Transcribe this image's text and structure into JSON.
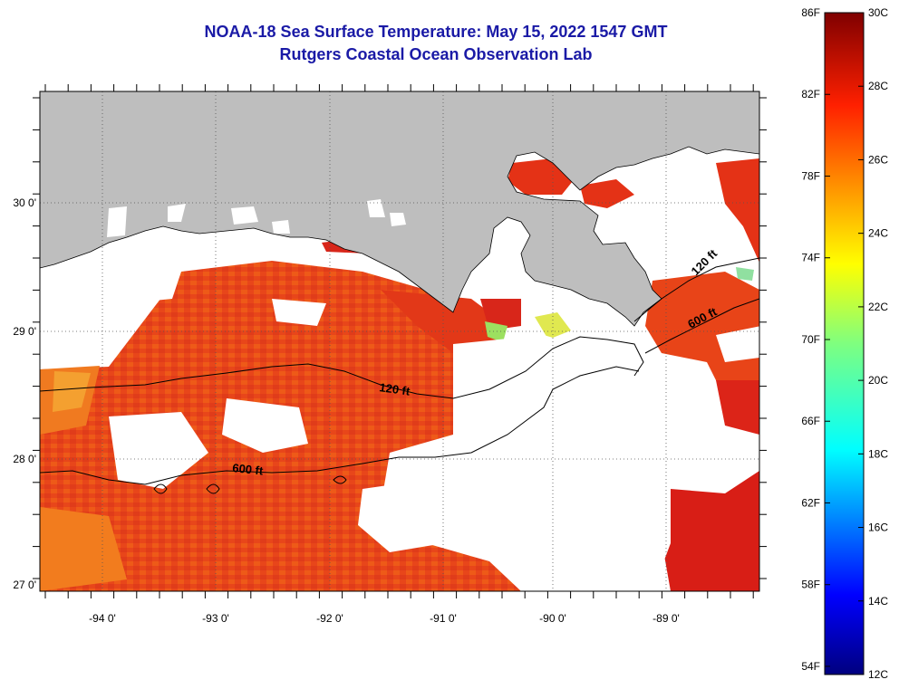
{
  "title": {
    "line1": "NOAA-18 Sea Surface Temperature:  May 15, 2022 1547 GMT",
    "line2": "Rutgers Coastal Ocean Observation Lab"
  },
  "axes": {
    "x_ticks": [
      {
        "value": -94,
        "label": "-94 0'"
      },
      {
        "value": -93,
        "label": "-93 0'"
      },
      {
        "value": -92,
        "label": "-92 0'"
      },
      {
        "value": -91,
        "label": "-91 0'"
      },
      {
        "value": -90,
        "label": "-90 0'"
      },
      {
        "value": -89,
        "label": "-89 0'"
      }
    ],
    "y_ticks": [
      {
        "value": 30,
        "label": "30 0'"
      },
      {
        "value": 29,
        "label": "29 0'"
      },
      {
        "value": 28,
        "label": "28 0'"
      },
      {
        "value": 27,
        "label": "27 0'"
      }
    ],
    "lon_range": [
      -94.5,
      -88.2
    ],
    "lat_range": [
      26.95,
      30.85
    ]
  },
  "contours": [
    {
      "name": "120-ft-isobath",
      "label": "120 ft"
    },
    {
      "name": "120-ft-isobath-east",
      "label": "120 ft"
    },
    {
      "name": "600-ft-isobath",
      "label": "600 ft"
    },
    {
      "name": "600-ft-isobath-east",
      "label": "600 ft"
    }
  ],
  "colorbar": {
    "fahrenheit_labels": [
      "86F",
      "82F",
      "78F",
      "74F",
      "70F",
      "66F",
      "62F",
      "58F",
      "54F"
    ],
    "celsius_labels": [
      "30C",
      "28C",
      "26C",
      "24C",
      "22C",
      "20C",
      "18C",
      "16C",
      "14C",
      "12C"
    ],
    "range_c": [
      12,
      30
    ]
  },
  "colors": {
    "land": "#bebebe",
    "cloud": "#ffffff",
    "sst_warm": "#e8461a",
    "sst_hot": "#dc1e14",
    "sst_orange": "#f06a14",
    "title": "#1a1aa6"
  }
}
